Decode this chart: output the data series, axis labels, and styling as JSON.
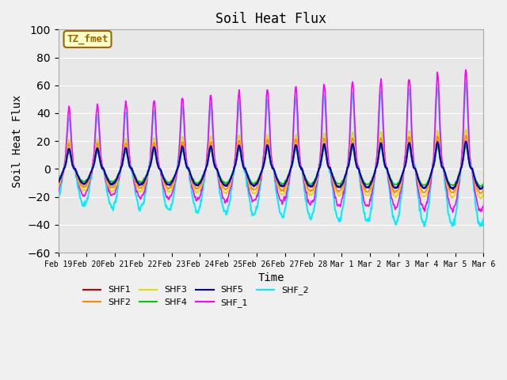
{
  "title": "Soil Heat Flux",
  "ylabel": "Soil Heat Flux",
  "xlabel": "Time",
  "ylim": [
    -60,
    100
  ],
  "yticks": [
    -60,
    -40,
    -20,
    0,
    20,
    40,
    60,
    80,
    100
  ],
  "date_labels": [
    "Feb 19",
    "Feb 20",
    "Feb 21",
    "Feb 22",
    "Feb 23",
    "Feb 24",
    "Feb 25",
    "Feb 26",
    "Feb 27",
    "Feb 28",
    "Mar 1",
    "Mar 2",
    "Mar 3",
    "Mar 4",
    "Mar 5",
    "Mar 6"
  ],
  "series": {
    "SHF1": {
      "color": "#cc0000",
      "lw": 1.2
    },
    "SHF2": {
      "color": "#ff8800",
      "lw": 1.2
    },
    "SHF3": {
      "color": "#dddd00",
      "lw": 1.2
    },
    "SHF4": {
      "color": "#00cc00",
      "lw": 1.2
    },
    "SHF5": {
      "color": "#0000cc",
      "lw": 1.5
    },
    "SHF_1": {
      "color": "#ff00ff",
      "lw": 1.2
    },
    "SHF_2": {
      "color": "#00eeff",
      "lw": 1.5
    }
  },
  "annotation_text": "TZ_fmet",
  "annotation_color": "#996600",
  "annotation_bg": "#ffffcc",
  "background_color": "#e8e8e8",
  "fig_bg": "#f0f0f0",
  "n_days": 15,
  "points_per_day": 48
}
